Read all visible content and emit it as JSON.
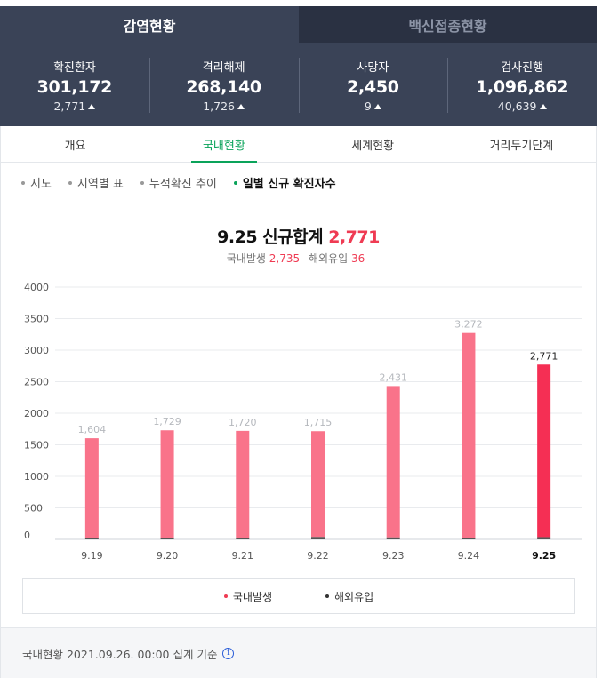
{
  "top_tabs": [
    {
      "label": "감염현황",
      "active": true
    },
    {
      "label": "백신접종현황",
      "active": false
    }
  ],
  "stats": [
    {
      "label": "확진환자",
      "value": "301,172",
      "delta": "2,771"
    },
    {
      "label": "격리해제",
      "value": "268,140",
      "delta": "1,726"
    },
    {
      "label": "사망자",
      "value": "2,450",
      "delta": "9"
    },
    {
      "label": "검사진행",
      "value": "1,096,862",
      "delta": "40,639"
    }
  ],
  "sub_tabs": [
    {
      "label": "개요",
      "active": false
    },
    {
      "label": "국내현황",
      "active": true
    },
    {
      "label": "세계현황",
      "active": false
    },
    {
      "label": "거리두기단계",
      "active": false
    }
  ],
  "filters": [
    {
      "label": "지도",
      "active": false
    },
    {
      "label": "지역별 표",
      "active": false
    },
    {
      "label": "누적확진 추이",
      "active": false
    },
    {
      "label": "일별 신규 확진자수",
      "active": true
    }
  ],
  "summary": {
    "title": "9.25 신규합계",
    "total": "2,771",
    "domestic_label": "국내발생",
    "domestic_value": "2,735",
    "overseas_label": "해외유입",
    "overseas_value": "36"
  },
  "colors": {
    "header_bg": "#3a4357",
    "accent_green": "#0aa35a",
    "accent_red": "#ef3b53",
    "bar_past": "#f9738a",
    "bar_current": "#f52f54",
    "bar_overseas": "#555555"
  },
  "chart_data": {
    "type": "bar",
    "stacked": true,
    "categories": [
      "9.19",
      "9.20",
      "9.21",
      "9.22",
      "9.23",
      "9.24",
      "9.25"
    ],
    "series": [
      {
        "name": "국내발생",
        "values": [
          1582,
          1705,
          1697,
          1677,
          2400,
          3248,
          2735
        ]
      },
      {
        "name": "해외유입",
        "values": [
          22,
          24,
          23,
          38,
          31,
          24,
          36
        ]
      }
    ],
    "totals": [
      1604,
      1729,
      1720,
      1715,
      2431,
      3272,
      2771
    ],
    "total_labels": [
      "1,604",
      "1,729",
      "1,720",
      "1,715",
      "2,431",
      "3,272",
      "2,771"
    ],
    "yticks": [
      0,
      500,
      1000,
      1500,
      2000,
      2500,
      3000,
      3500,
      4000
    ],
    "ylim": [
      0,
      4000
    ],
    "highlight_index": 6,
    "grid": true
  },
  "legend": [
    {
      "label": "국내발생",
      "color": "#ef3b53"
    },
    {
      "label": "해외유입",
      "color": "#333333"
    }
  ],
  "footer": {
    "text": "국내현황 2021.09.26. 00:00 집계 기준",
    "info_icon": "info-icon"
  }
}
